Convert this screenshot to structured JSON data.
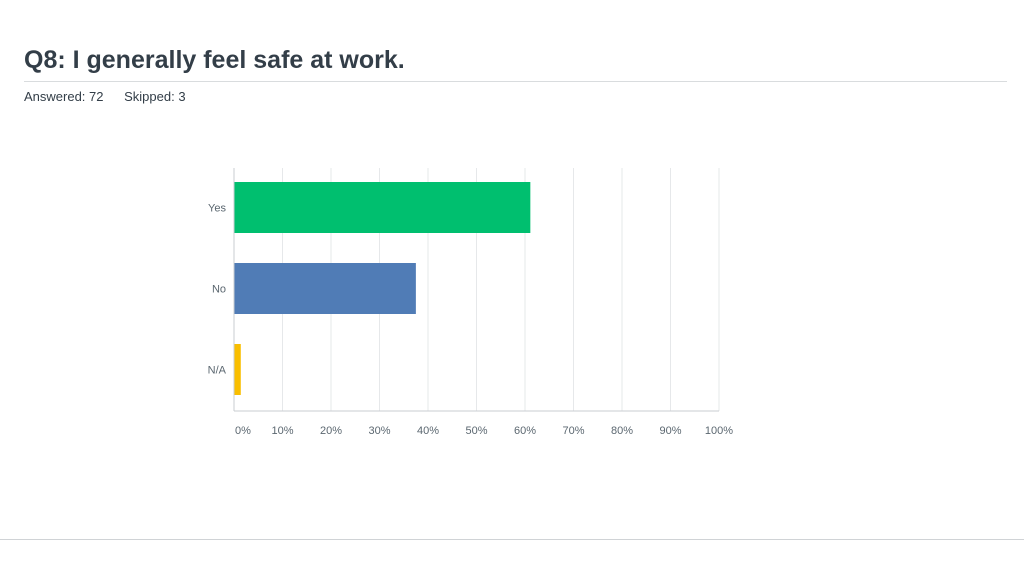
{
  "header": {
    "question_title": "Q8: I generally feel safe at work.",
    "answered": "Answered: 72",
    "skipped": "Skipped: 3"
  },
  "chart_data": {
    "type": "bar",
    "orientation": "horizontal",
    "title": "",
    "xlabel": "",
    "ylabel": "",
    "categories": [
      "Yes",
      "No",
      "N/A"
    ],
    "values": [
      61.1,
      37.5,
      1.4
    ],
    "unit": "%",
    "xlim": [
      0,
      100
    ],
    "ticks": [
      "0%",
      "10%",
      "20%",
      "30%",
      "40%",
      "50%",
      "60%",
      "70%",
      "80%",
      "90%",
      "100%"
    ],
    "grid": true,
    "legend": "none",
    "colors": [
      "#00bf6f",
      "#507cb6",
      "#f9be00"
    ]
  }
}
